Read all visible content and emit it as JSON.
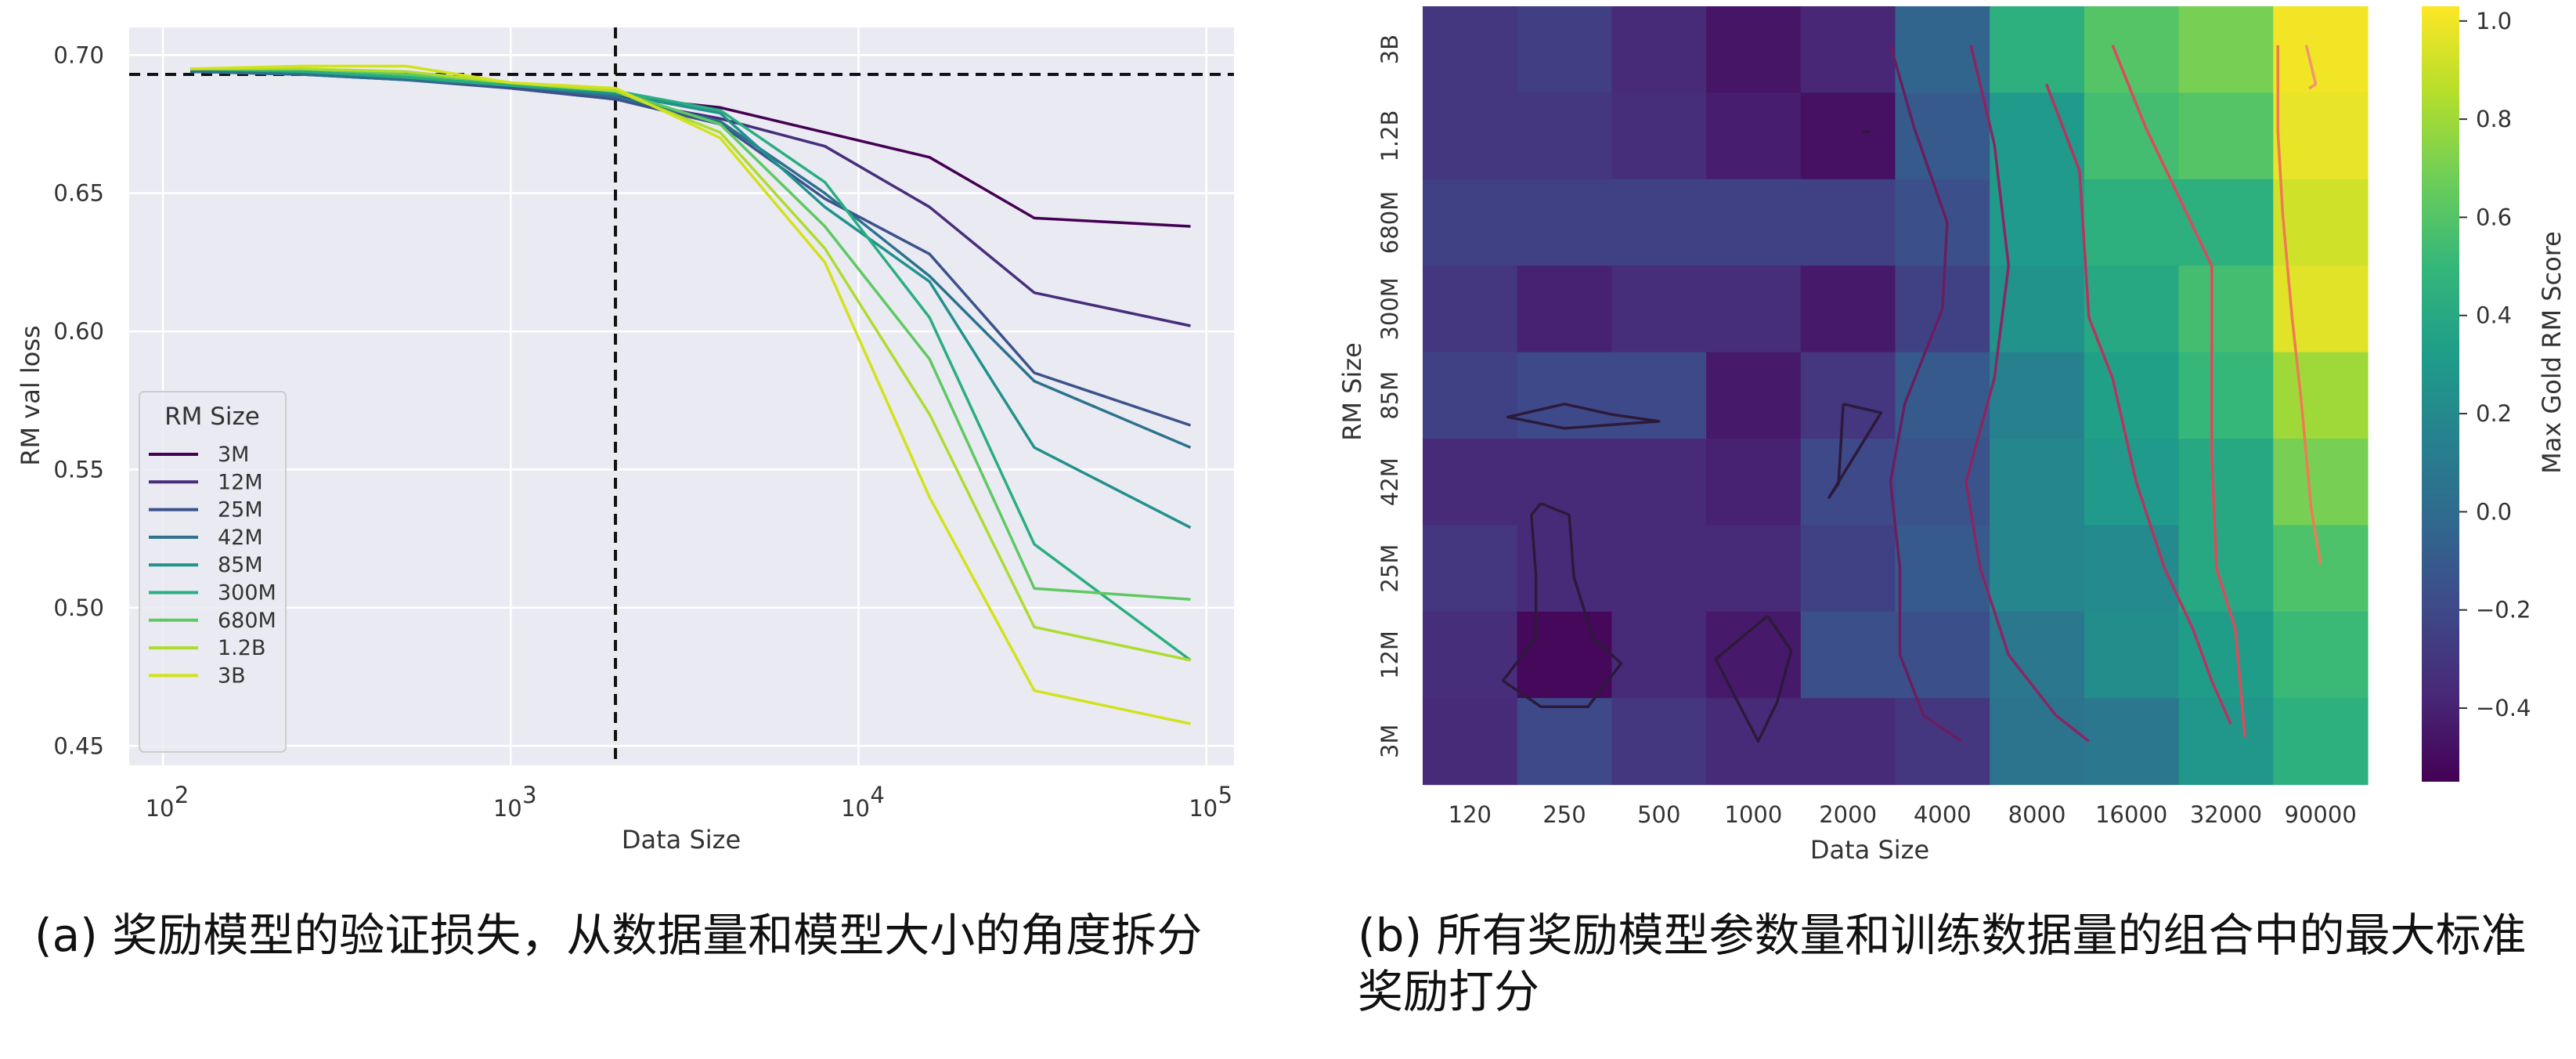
{
  "captions": {
    "a": "(a) 奖励模型的验证损失，从数据量和模型大小的角度拆分",
    "b": "(b) 所有奖励模型参数量和训练数据量的组合中的最大标准奖励打分"
  },
  "chart_data": [
    {
      "type": "line",
      "xlabel": "Data Size",
      "ylabel": "RM val loss",
      "xscale": "log",
      "xlim": [
        80,
        120000
      ],
      "ylim": [
        0.443,
        0.71
      ],
      "x_ticks": [
        {
          "v": 100,
          "e": "2"
        },
        {
          "v": 1000,
          "e": "3"
        },
        {
          "v": 10000,
          "e": "4"
        },
        {
          "v": 100000,
          "e": "5"
        }
      ],
      "y_ticks": [
        0.45,
        0.5,
        0.55,
        0.6,
        0.65,
        0.7
      ],
      "reference_lines": {
        "hline_y": 0.693,
        "vline_x": 2000
      },
      "grid": true,
      "background": "#eaeaf2",
      "legend": {
        "title": "RM Size",
        "position": "lower-left"
      },
      "series": [
        {
          "name": "3M",
          "color": "#440154",
          "x": [
            120,
            250,
            500,
            1000,
            2000,
            4000,
            8000,
            16000,
            32000,
            90000
          ],
          "y": [
            0.694,
            0.693,
            0.692,
            0.689,
            0.685,
            0.681,
            0.672,
            0.663,
            0.641,
            0.638
          ]
        },
        {
          "name": "12M",
          "color": "#472d7b",
          "x": [
            120,
            250,
            500,
            1000,
            2000,
            4000,
            8000,
            16000,
            32000,
            90000
          ],
          "y": [
            0.694,
            0.694,
            0.692,
            0.688,
            0.684,
            0.677,
            0.667,
            0.645,
            0.614,
            0.602
          ]
        },
        {
          "name": "25M",
          "color": "#3b528b",
          "x": [
            120,
            250,
            500,
            1000,
            2000,
            4000,
            8000,
            16000,
            32000,
            90000
          ],
          "y": [
            0.694,
            0.693,
            0.691,
            0.688,
            0.684,
            0.675,
            0.648,
            0.628,
            0.585,
            0.566
          ]
        },
        {
          "name": "42M",
          "color": "#2c728e",
          "x": [
            120,
            250,
            500,
            1000,
            2000,
            4000,
            8000,
            16000,
            32000,
            90000
          ],
          "y": [
            0.694,
            0.693,
            0.691,
            0.689,
            0.685,
            0.676,
            0.65,
            0.62,
            0.582,
            0.558
          ]
        },
        {
          "name": "85M",
          "color": "#21918c",
          "x": [
            120,
            250,
            500,
            1000,
            2000,
            4000,
            8000,
            16000,
            32000,
            90000
          ],
          "y": [
            0.695,
            0.694,
            0.692,
            0.689,
            0.686,
            0.679,
            0.645,
            0.618,
            0.558,
            0.529
          ]
        },
        {
          "name": "300M",
          "color": "#28ae80",
          "x": [
            120,
            250,
            500,
            1000,
            2000,
            4000,
            8000,
            16000,
            32000,
            90000
          ],
          "y": [
            0.695,
            0.694,
            0.692,
            0.689,
            0.687,
            0.68,
            0.654,
            0.605,
            0.523,
            0.481
          ]
        },
        {
          "name": "680M",
          "color": "#5ec962",
          "x": [
            120,
            250,
            500,
            1000,
            2000,
            4000,
            8000,
            16000,
            32000,
            90000
          ],
          "y": [
            0.695,
            0.695,
            0.693,
            0.69,
            0.687,
            0.675,
            0.638,
            0.59,
            0.507,
            0.503
          ]
        },
        {
          "name": "1.2B",
          "color": "#addc30",
          "x": [
            120,
            250,
            500,
            1000,
            2000,
            4000,
            8000,
            16000,
            32000,
            90000
          ],
          "y": [
            0.695,
            0.695,
            0.694,
            0.69,
            0.687,
            0.672,
            0.63,
            0.57,
            0.493,
            0.481
          ]
        },
        {
          "name": "3B",
          "color": "#d2e21b",
          "x": [
            120,
            250,
            500,
            1000,
            2000,
            4000,
            8000,
            16000,
            32000,
            90000
          ],
          "y": [
            0.695,
            0.696,
            0.696,
            0.69,
            0.688,
            0.67,
            0.625,
            0.54,
            0.47,
            0.458
          ]
        }
      ]
    },
    {
      "type": "heatmap",
      "xlabel": "Data Size",
      "ylabel": "RM Size",
      "x_categories": [
        "120",
        "250",
        "500",
        "1000",
        "2000",
        "4000",
        "8000",
        "16000",
        "32000",
        "90000"
      ],
      "y_categories": [
        "3B",
        "1.2B",
        "680M",
        "300M",
        "85M",
        "42M",
        "25M",
        "12M",
        "3M"
      ],
      "values": [
        [
          -0.3,
          -0.26,
          -0.36,
          -0.46,
          -0.38,
          -0.04,
          0.45,
          0.6,
          0.7,
          1.0
        ],
        [
          -0.3,
          -0.3,
          -0.34,
          -0.42,
          -0.48,
          -0.1,
          0.3,
          0.55,
          0.6,
          0.98
        ],
        [
          -0.24,
          -0.24,
          -0.24,
          -0.24,
          -0.24,
          -0.16,
          0.3,
          0.45,
          0.45,
          0.92
        ],
        [
          -0.3,
          -0.4,
          -0.34,
          -0.34,
          -0.44,
          -0.24,
          0.26,
          0.4,
          0.55,
          0.96
        ],
        [
          -0.24,
          -0.2,
          -0.2,
          -0.44,
          -0.3,
          -0.1,
          0.14,
          0.34,
          0.5,
          0.8
        ],
        [
          -0.36,
          -0.36,
          -0.36,
          -0.4,
          -0.2,
          -0.14,
          0.18,
          0.3,
          0.4,
          0.7
        ],
        [
          -0.3,
          -0.36,
          -0.36,
          -0.36,
          -0.24,
          -0.1,
          0.18,
          0.2,
          0.4,
          0.58
        ],
        [
          -0.34,
          -0.52,
          -0.36,
          -0.44,
          -0.16,
          -0.16,
          0.08,
          0.22,
          0.32,
          0.52
        ],
        [
          -0.36,
          -0.2,
          -0.3,
          -0.36,
          -0.36,
          -0.3,
          0.05,
          0.08,
          0.28,
          0.45
        ]
      ],
      "colorbar": {
        "label": "Max Gold RM Score",
        "min": -0.55,
        "max": 1.03,
        "ticks": [
          1.0,
          0.8,
          0.6,
          0.4,
          0.2,
          0.0,
          -0.2,
          -0.4
        ]
      },
      "colormap_stops": [
        "#440154",
        "#482878",
        "#3e4989",
        "#31688e",
        "#26828e",
        "#1f9e89",
        "#35b779",
        "#6ece58",
        "#b5de2b",
        "#fde725"
      ],
      "contours": [
        {
          "color": "#2d1a3a",
          "pts": [
            [
              2,
              4.72
            ],
            [
              1.5,
              4.6
            ],
            [
              0.9,
              4.75
            ],
            [
              1.5,
              4.88
            ],
            [
              2.5,
              4.8
            ],
            [
              2,
              4.72
            ]
          ]
        },
        {
          "color": "#2d1a3a",
          "pts": [
            [
              4.45,
              4.6
            ],
            [
              4.85,
              4.7
            ],
            [
              4.3,
              5.68
            ],
            [
              4.4,
              5.52
            ],
            [
              4.45,
              4.6
            ]
          ]
        },
        {
          "color": "#2d1a3a",
          "pts": [
            [
              1.25,
              5.75
            ],
            [
              1.55,
              5.88
            ],
            [
              1.6,
              6.6
            ],
            [
              1.8,
              7.3
            ],
            [
              2.1,
              7.6
            ],
            [
              1.75,
              8.1
            ],
            [
              1.25,
              8.1
            ],
            [
              0.85,
              7.8
            ],
            [
              1.2,
              7.3
            ],
            [
              1.2,
              6.6
            ],
            [
              1.15,
              5.88
            ],
            [
              1.25,
              5.75
            ]
          ]
        },
        {
          "color": "#2d1a3a",
          "pts": [
            [
              3.65,
              7.05
            ],
            [
              3.9,
              7.45
            ],
            [
              3.75,
              8.05
            ],
            [
              3.55,
              8.5
            ],
            [
              3.1,
              7.55
            ],
            [
              3.65,
              7.05
            ]
          ]
        },
        {
          "color": "#2d1a3a",
          "pts": [
            [
              4.65,
              1.45
            ],
            [
              4.73,
              1.45
            ]
          ]
        },
        {
          "color": "#6a1e5e",
          "pts": [
            [
              4.95,
              0.45
            ],
            [
              5.2,
              1.4
            ],
            [
              5.55,
              2.5
            ],
            [
              5.5,
              3.5
            ],
            [
              5.1,
              4.6
            ],
            [
              4.95,
              5.5
            ],
            [
              5.05,
              6.5
            ],
            [
              5.05,
              7.5
            ],
            [
              5.3,
              8.2
            ],
            [
              5.7,
              8.5
            ]
          ]
        },
        {
          "color": "#8b2563",
          "pts": [
            [
              5.8,
              0.45
            ],
            [
              6.05,
              1.6
            ],
            [
              6.2,
              3.0
            ],
            [
              6.05,
              4.3
            ],
            [
              5.75,
              5.5
            ],
            [
              5.9,
              6.5
            ],
            [
              6.2,
              7.5
            ],
            [
              6.7,
              8.2
            ],
            [
              7.05,
              8.5
            ]
          ]
        },
        {
          "color": "#b83360",
          "pts": [
            [
              6.6,
              0.9
            ],
            [
              6.95,
              1.9
            ],
            [
              7.05,
              3.6
            ],
            [
              7.3,
              4.3
            ],
            [
              7.55,
              5.5
            ],
            [
              7.85,
              6.5
            ],
            [
              8.15,
              7.2
            ],
            [
              8.35,
              7.8
            ],
            [
              8.55,
              8.3
            ]
          ]
        },
        {
          "color": "#dd4a5c",
          "pts": [
            [
              7.3,
              0.45
            ],
            [
              7.65,
              1.4
            ],
            [
              8.0,
              2.2
            ],
            [
              8.35,
              3.0
            ],
            [
              8.35,
              4.0
            ],
            [
              8.35,
              5.2
            ],
            [
              8.4,
              6.5
            ],
            [
              8.6,
              7.2
            ],
            [
              8.7,
              8.45
            ]
          ]
        },
        {
          "color": "#f07a52",
          "pts": [
            [
              9.05,
              0.45
            ],
            [
              9.05,
              1.45
            ],
            [
              9.1,
              2.4
            ],
            [
              9.2,
              3.6
            ],
            [
              9.3,
              4.6
            ],
            [
              9.4,
              5.8
            ],
            [
              9.5,
              6.45
            ]
          ]
        },
        {
          "color": "#f09670",
          "pts": [
            [
              9.35,
              0.45
            ],
            [
              9.45,
              0.9
            ],
            [
              9.38,
              0.95
            ]
          ]
        }
      ]
    }
  ]
}
